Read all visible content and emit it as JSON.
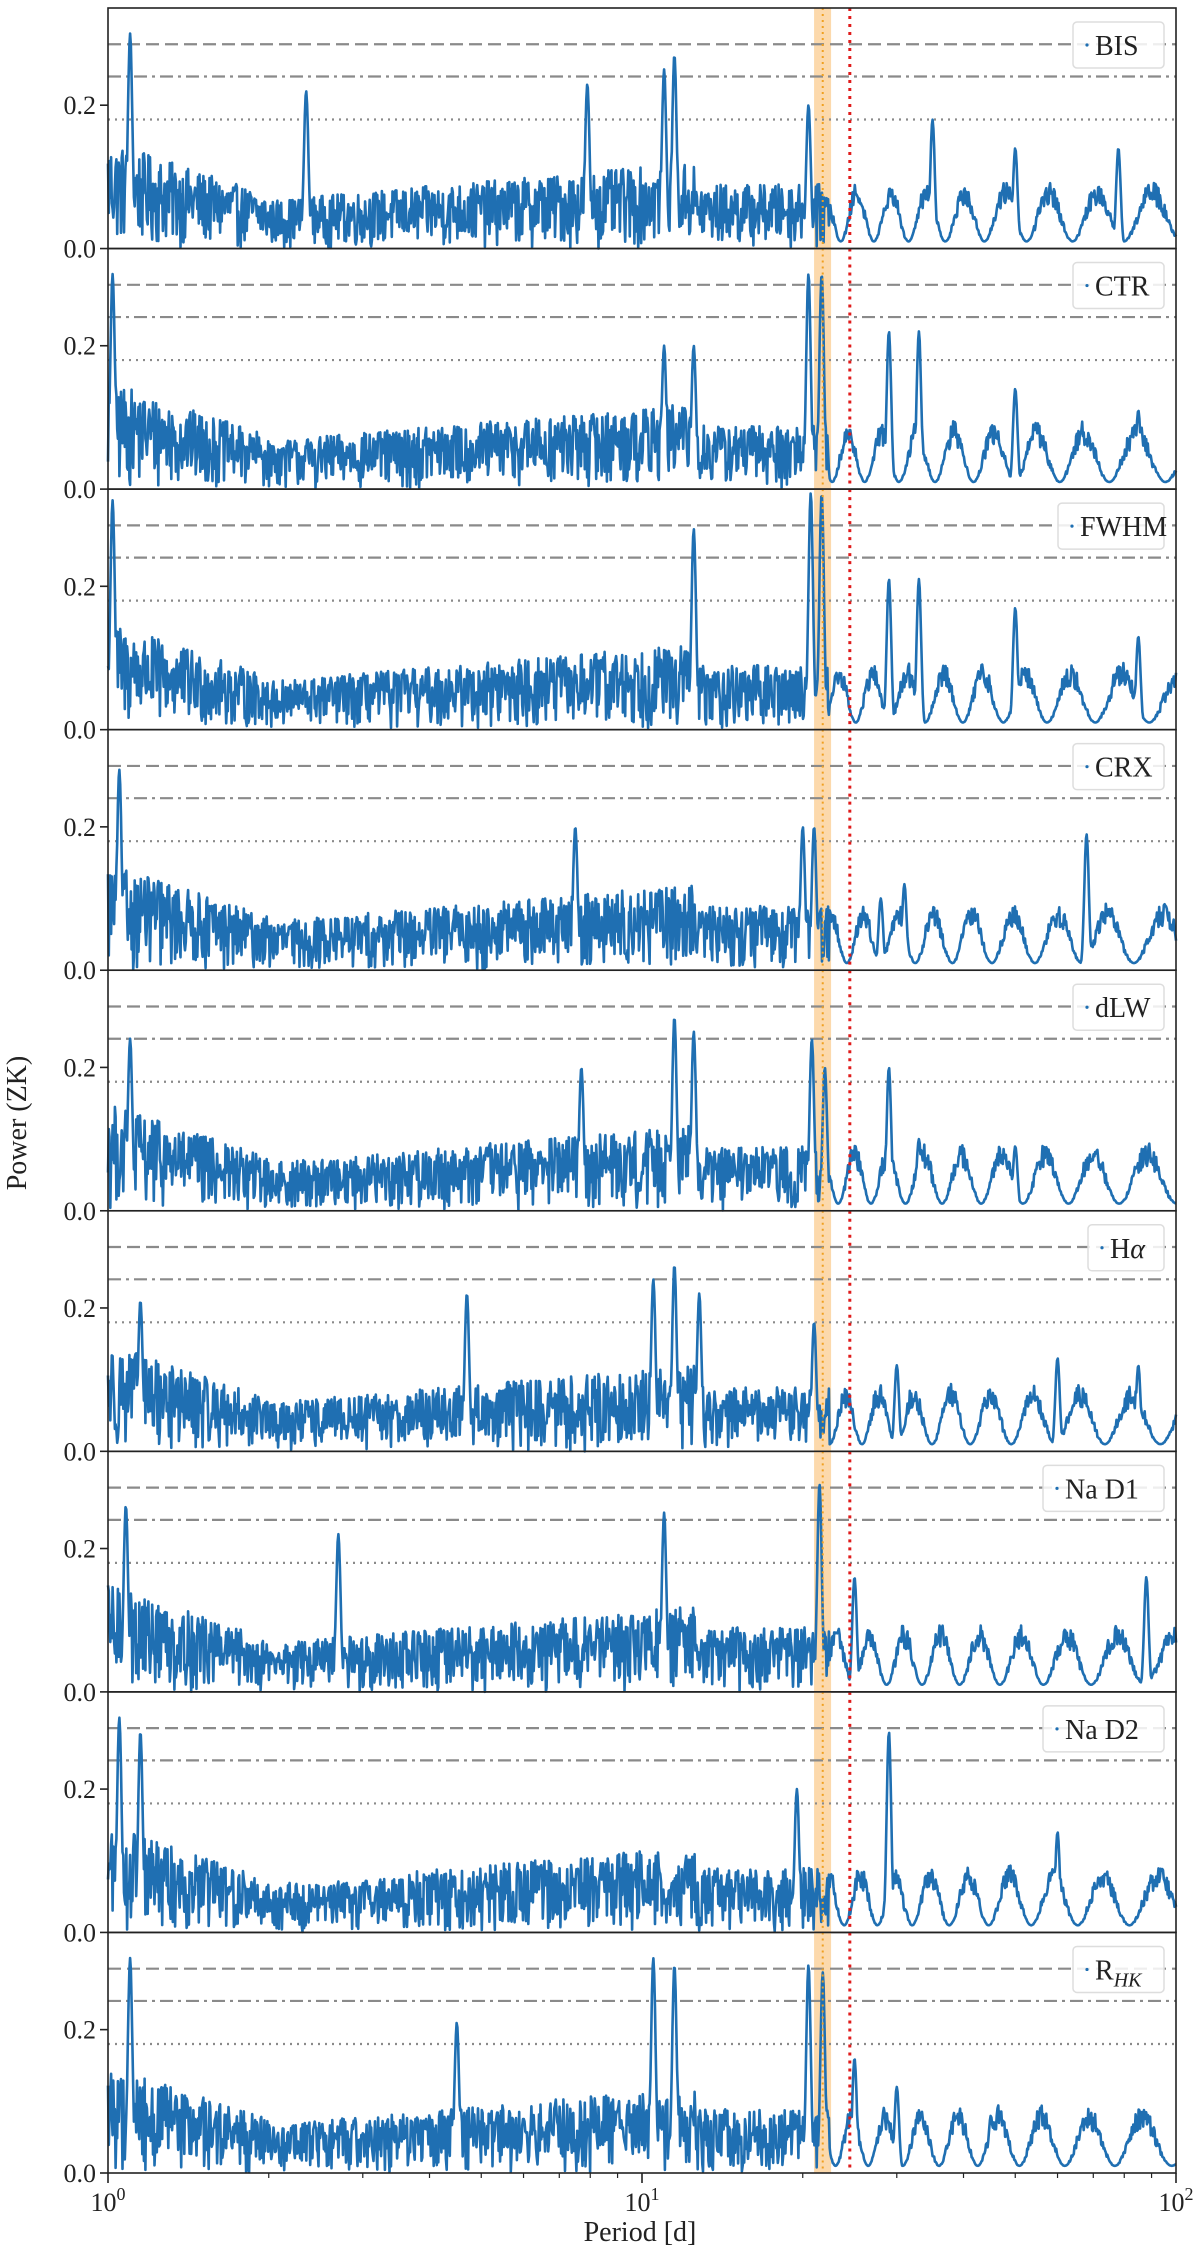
{
  "chart_data": {
    "type": "line",
    "xlabel": "Period [d]",
    "ylabel": "Power (ZK)",
    "xscale": "log",
    "xlim": [
      1,
      100
    ],
    "ylim": [
      0,
      0.33
    ],
    "x_ticks": [
      {
        "base": "10",
        "exp": "0"
      },
      {
        "base": "10",
        "exp": "1"
      },
      {
        "base": "10",
        "exp": "2"
      }
    ],
    "y_tick_labels": [
      "0.0",
      "0.2"
    ],
    "y_ticks": [
      0,
      0.2
    ],
    "series_color": "#1f6fb2",
    "shared_lines": {
      "fap_levels": [
        {
          "style": "dashed",
          "value": 0.285
        },
        {
          "style": "dashdot",
          "value": 0.24
        },
        {
          "style": "dotted",
          "value": 0.18
        }
      ],
      "highlight_band": {
        "x_start": 21.0,
        "x_end": 22.6,
        "color": "#fbc580"
      },
      "band_center_line": {
        "x": 21.8,
        "color": "#f0a020"
      },
      "red_line": {
        "x": 24.5,
        "color": "#e01b1b"
      }
    },
    "panels": [
      {
        "name": "BIS",
        "peaks": [
          [
            1.1,
            0.3
          ],
          [
            2.35,
            0.22
          ],
          [
            7.9,
            0.23
          ],
          [
            11.0,
            0.25
          ],
          [
            11.5,
            0.27
          ],
          [
            20.5,
            0.2
          ],
          [
            35,
            0.18
          ],
          [
            50,
            0.14
          ],
          [
            78,
            0.14
          ]
        ]
      },
      {
        "name": "CTR",
        "peaks": [
          [
            1.02,
            0.3
          ],
          [
            11.0,
            0.2
          ],
          [
            12.5,
            0.2
          ],
          [
            20.5,
            0.3
          ],
          [
            21.7,
            0.3
          ],
          [
            29,
            0.22
          ],
          [
            33,
            0.22
          ],
          [
            50,
            0.14
          ],
          [
            85,
            0.11
          ]
        ]
      },
      {
        "name": "FWHM",
        "peaks": [
          [
            1.02,
            0.32
          ],
          [
            12.5,
            0.28
          ],
          [
            20.7,
            0.33
          ],
          [
            21.7,
            0.33
          ],
          [
            29,
            0.21
          ],
          [
            33,
            0.21
          ],
          [
            50,
            0.17
          ],
          [
            85,
            0.13
          ]
        ]
      },
      {
        "name": "CRX",
        "peaks": [
          [
            1.05,
            0.28
          ],
          [
            7.5,
            0.2
          ],
          [
            20.0,
            0.2
          ],
          [
            21.0,
            0.2
          ],
          [
            28,
            0.1
          ],
          [
            31,
            0.12
          ],
          [
            68,
            0.19
          ]
        ]
      },
      {
        "name": "dLW",
        "peaks": [
          [
            1.1,
            0.24
          ],
          [
            7.7,
            0.2
          ],
          [
            11.5,
            0.27
          ],
          [
            12.5,
            0.25
          ],
          [
            20.8,
            0.24
          ],
          [
            22.0,
            0.2
          ],
          [
            29,
            0.2
          ],
          [
            33,
            0.1
          ],
          [
            50,
            0.09
          ]
        ]
      },
      {
        "name": "Hα",
        "name_base": "H",
        "name_italic": "α",
        "peaks": [
          [
            1.15,
            0.21
          ],
          [
            4.7,
            0.22
          ],
          [
            10.5,
            0.24
          ],
          [
            11.5,
            0.26
          ],
          [
            12.8,
            0.22
          ],
          [
            21.0,
            0.18
          ],
          [
            30,
            0.12
          ],
          [
            60,
            0.13
          ],
          [
            85,
            0.12
          ]
        ]
      },
      {
        "name": "Na D1",
        "peaks": [
          [
            1.08,
            0.26
          ],
          [
            2.7,
            0.22
          ],
          [
            11.0,
            0.25
          ],
          [
            21.5,
            0.29
          ],
          [
            25,
            0.16
          ],
          [
            88,
            0.16
          ]
        ]
      },
      {
        "name": "Na D2",
        "peaks": [
          [
            1.05,
            0.3
          ],
          [
            1.15,
            0.28
          ],
          [
            19.5,
            0.2
          ],
          [
            29,
            0.28
          ],
          [
            60,
            0.14
          ]
        ]
      },
      {
        "name": "RHK",
        "name_base": "R",
        "name_sub": "HK",
        "peaks": [
          [
            1.1,
            0.3
          ],
          [
            4.5,
            0.21
          ],
          [
            10.5,
            0.3
          ],
          [
            11.5,
            0.29
          ],
          [
            20.5,
            0.29
          ],
          [
            21.8,
            0.28
          ],
          [
            25,
            0.16
          ],
          [
            30,
            0.12
          ],
          [
            45,
            0.08
          ]
        ]
      }
    ]
  }
}
